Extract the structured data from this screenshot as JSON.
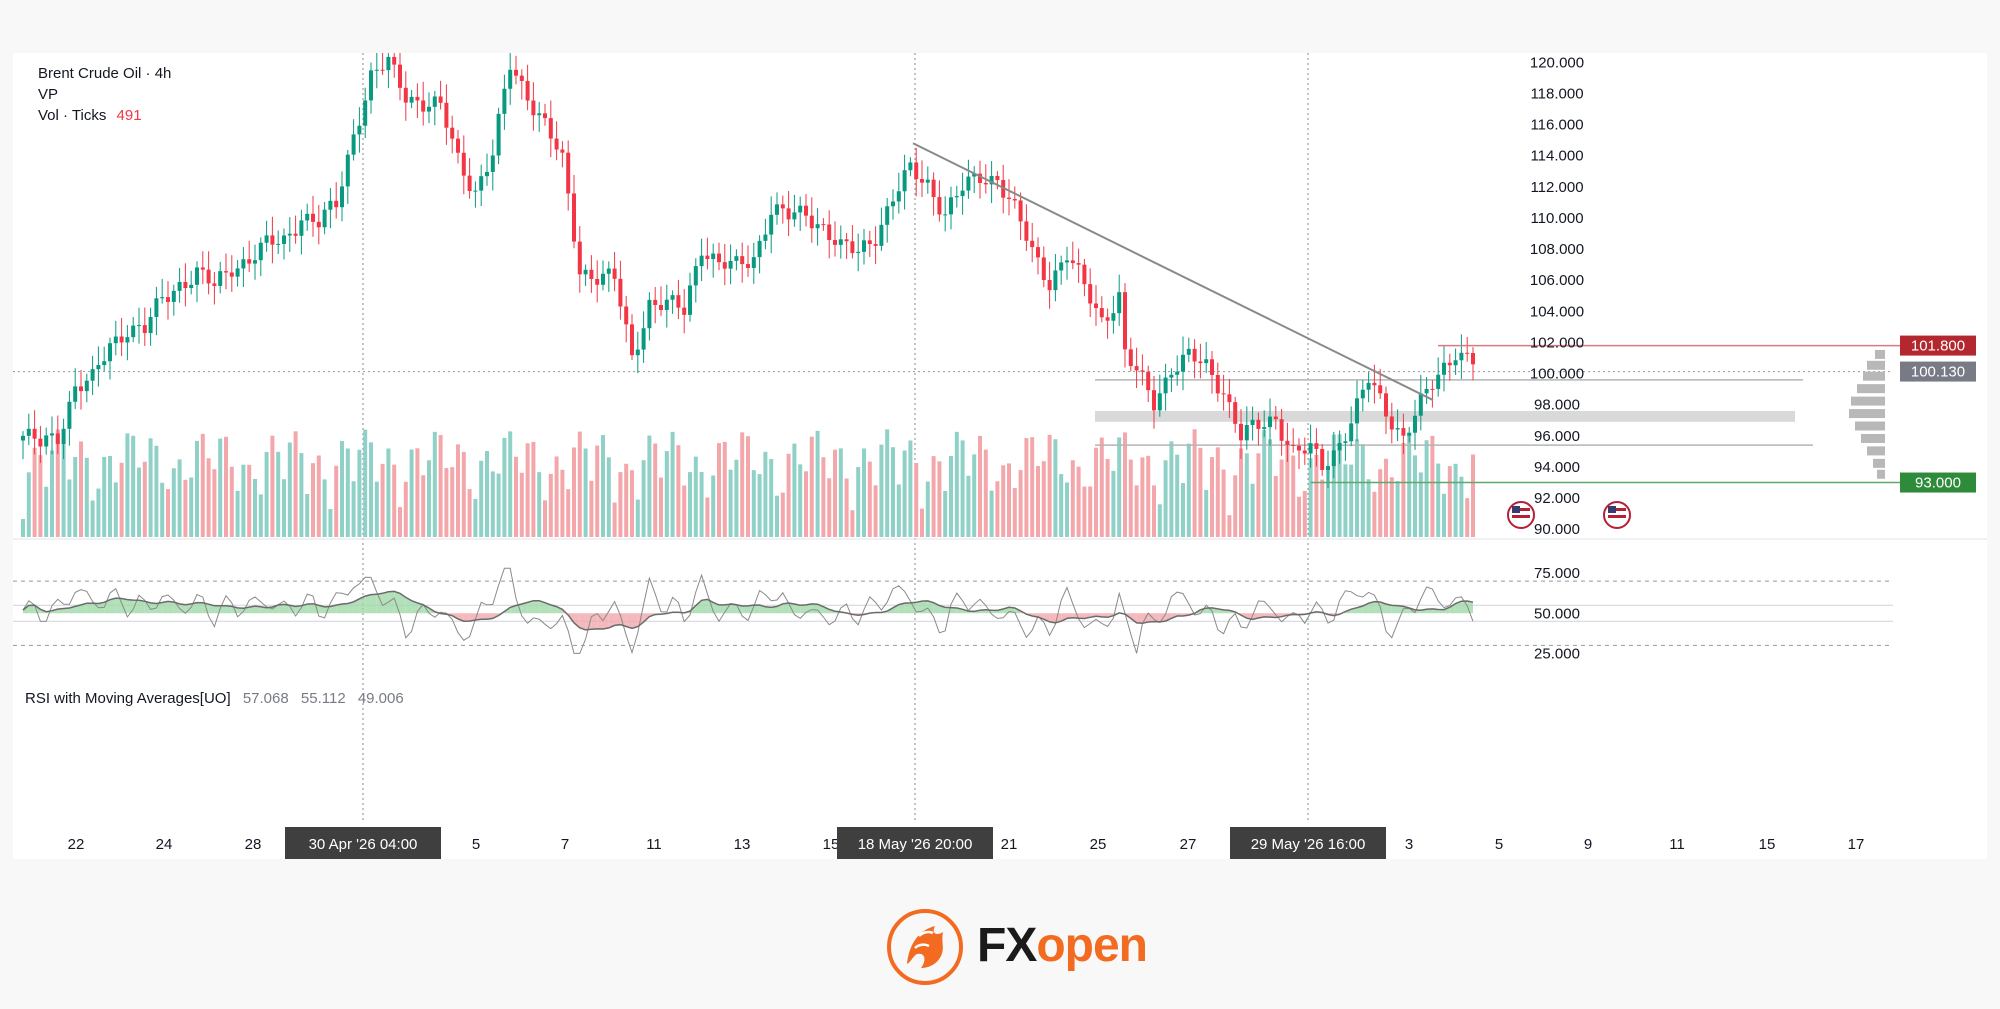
{
  "legend": {
    "symbol": "Brent Crude Oil · 4h",
    "vp": "VP",
    "vol_label": "Vol · Ticks",
    "vol_value": "491"
  },
  "rsi_legend": {
    "label": "RSI with Moving Averages[UO]",
    "v1": "57.068",
    "v2": "55.112",
    "v3": "49.006"
  },
  "price_badges": {
    "resistance": "101.800",
    "current": "100.130",
    "support": "93.000"
  },
  "crosshair_labels": [
    "30 Apr '26   04:00",
    "18 May '26   20:00",
    "29 May '26   16:00"
  ],
  "brand": {
    "fx": "FX",
    "open": "open"
  },
  "colors": {
    "up": "#089981",
    "down": "#f23645",
    "vol_up": "#8fd0c7",
    "vol_down": "#f4a7ab",
    "resistance": "#b2282e",
    "support": "#2e8b3a",
    "trendline": "#8a8a8a",
    "brand": "#f26b21"
  },
  "chart_data": {
    "type": "candlestick",
    "ylim": [
      89.5,
      120.6
    ],
    "y_ticks": [
      "120.000",
      "118.000",
      "116.000",
      "114.000",
      "112.000",
      "110.000",
      "108.000",
      "106.000",
      "104.000",
      "102.000",
      "100.000",
      "98.000",
      "96.000",
      "94.000",
      "92.000",
      "90.000"
    ],
    "x_ticks": [
      "22",
      "24",
      "28",
      "5",
      "7",
      "11",
      "13",
      "15",
      "21",
      "25",
      "27",
      "3",
      "5",
      "9",
      "11",
      "15",
      "17"
    ],
    "rsi_ticks": [
      "75.000",
      "50.000",
      "25.000"
    ],
    "anchors": [
      [
        0,
        96.0
      ],
      [
        3,
        95.4
      ],
      [
        6,
        96.0
      ],
      [
        9,
        99.2
      ],
      [
        12,
        99.5
      ],
      [
        15,
        101.8
      ],
      [
        18,
        103.0
      ],
      [
        21,
        102.8
      ],
      [
        24,
        104.7
      ],
      [
        27,
        105.8
      ],
      [
        30,
        106.5
      ],
      [
        33,
        105.5
      ],
      [
        36,
        106.9
      ],
      [
        39,
        107.4
      ],
      [
        42,
        108.2
      ],
      [
        45,
        108.5
      ],
      [
        48,
        110.2
      ],
      [
        51,
        109.6
      ],
      [
        54,
        110.8
      ],
      [
        57,
        115.5
      ],
      [
        60,
        119.0
      ],
      [
        63,
        119.9
      ],
      [
        66,
        118.0
      ],
      [
        69,
        117.4
      ],
      [
        72,
        117.0
      ],
      [
        75,
        113.8
      ],
      [
        78,
        111.8
      ],
      [
        81,
        114.0
      ],
      [
        84,
        119.8
      ],
      [
        87,
        118.0
      ],
      [
        90,
        116.0
      ],
      [
        93,
        113.5
      ],
      [
        96,
        106.7
      ],
      [
        99,
        106.3
      ],
      [
        102,
        106.0
      ],
      [
        105,
        101.0
      ],
      [
        108,
        104.6
      ],
      [
        111,
        104.4
      ],
      [
        114,
        104.0
      ],
      [
        117,
        108.3
      ],
      [
        120,
        107.0
      ],
      [
        123,
        106.8
      ],
      [
        126,
        107.5
      ],
      [
        129,
        110.6
      ],
      [
        132,
        110.0
      ],
      [
        135,
        110.3
      ],
      [
        138,
        109.5
      ],
      [
        141,
        108.0
      ],
      [
        144,
        107.8
      ],
      [
        147,
        109.0
      ],
      [
        150,
        111.2
      ],
      [
        153,
        113.0
      ],
      [
        156,
        112.3
      ],
      [
        159,
        110.3
      ],
      [
        162,
        111.8
      ],
      [
        165,
        112.7
      ],
      [
        168,
        112.6
      ],
      [
        171,
        110.4
      ],
      [
        174,
        107.8
      ],
      [
        177,
        106.0
      ],
      [
        180,
        107.6
      ],
      [
        183,
        105.5
      ],
      [
        186,
        103.5
      ],
      [
        189,
        105.0
      ],
      [
        190,
        101.2
      ],
      [
        193,
        99.4
      ],
      [
        195,
        98.2
      ],
      [
        198,
        100.4
      ],
      [
        201,
        101.0
      ],
      [
        204,
        100.4
      ],
      [
        207,
        99.0
      ],
      [
        210,
        96.0
      ],
      [
        213,
        96.5
      ],
      [
        216,
        97.2
      ],
      [
        219,
        95.0
      ],
      [
        222,
        95.0
      ],
      [
        224,
        94.0
      ],
      [
        226,
        95.0
      ],
      [
        229,
        97.0
      ],
      [
        232,
        99.5
      ],
      [
        235,
        97.6
      ],
      [
        238,
        96.0
      ],
      [
        241,
        98.0
      ],
      [
        244,
        99.8
      ],
      [
        247,
        101.6
      ],
      [
        250,
        100.8
      ]
    ],
    "volume": {
      "ylim": [
        0,
        9
      ]
    },
    "rsi": {
      "ylim": [
        0,
        100
      ],
      "upper": 70,
      "lower": 30,
      "mid": 50
    }
  }
}
